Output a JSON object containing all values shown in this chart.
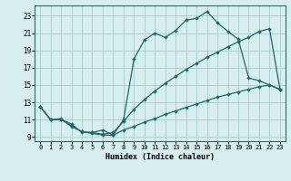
{
  "xlabel": "Humidex (Indice chaleur)",
  "bg_color": "#d6eeee",
  "grid_color": "#aacccc",
  "line_color": "#1a6b6b",
  "xlim": [
    -0.5,
    23.5
  ],
  "ylim": [
    8.5,
    24.2
  ],
  "xticks": [
    0,
    1,
    2,
    3,
    4,
    5,
    6,
    7,
    8,
    9,
    10,
    11,
    12,
    13,
    14,
    15,
    16,
    17,
    18,
    19,
    20,
    21,
    22,
    23
  ],
  "yticks": [
    9,
    11,
    13,
    15,
    17,
    19,
    21,
    23
  ],
  "upper_x": [
    0,
    1,
    2,
    3,
    4,
    5,
    6,
    7,
    8,
    9,
    10,
    11,
    12,
    13,
    14,
    15,
    16,
    17,
    18,
    19,
    20,
    21,
    22,
    23
  ],
  "upper_y": [
    12.5,
    11.0,
    11.0,
    10.5,
    9.5,
    9.5,
    9.8,
    9.2,
    11.0,
    18.0,
    20.2,
    21.0,
    20.5,
    21.3,
    22.5,
    22.7,
    23.5,
    22.2,
    21.2,
    20.3,
    15.8,
    15.5,
    15.0,
    14.5
  ],
  "mid_x": [
    0,
    1,
    2,
    3,
    4,
    5,
    6,
    7,
    8,
    9,
    10,
    11,
    12,
    13,
    14,
    15,
    16,
    17,
    18,
    19,
    20,
    21,
    22,
    23
  ],
  "mid_y": [
    12.5,
    11.0,
    11.0,
    10.3,
    9.6,
    9.5,
    9.3,
    9.5,
    10.8,
    12.2,
    13.3,
    14.3,
    15.2,
    16.0,
    16.8,
    17.5,
    18.2,
    18.8,
    19.4,
    20.0,
    20.5,
    21.2,
    21.5,
    14.5
  ],
  "low_x": [
    0,
    1,
    2,
    3,
    4,
    5,
    6,
    7,
    8,
    9,
    10,
    11,
    12,
    13,
    14,
    15,
    16,
    17,
    18,
    19,
    20,
    21,
    22,
    23
  ],
  "low_y": [
    12.5,
    11.0,
    11.1,
    10.2,
    9.6,
    9.4,
    9.2,
    9.2,
    9.8,
    10.2,
    10.7,
    11.1,
    11.6,
    12.0,
    12.4,
    12.8,
    13.2,
    13.6,
    13.9,
    14.2,
    14.5,
    14.8,
    15.0,
    14.5
  ]
}
